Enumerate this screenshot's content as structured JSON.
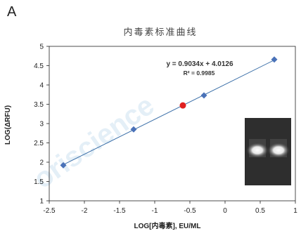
{
  "panel_label": "A",
  "watermark": "oriscience",
  "colors": {
    "line": "#3b6fa8",
    "marker": "#4a72b8",
    "sample": "#e02020",
    "axis": "#222222"
  },
  "chart_data": {
    "type": "scatter",
    "title": "内毒素标准曲线",
    "xlabel": "LOG[内毒素], EU/ML",
    "ylabel": "LOG(ΔRFU)",
    "xlim": [
      -2.5,
      1
    ],
    "ylim": [
      1,
      5
    ],
    "xticks": [
      "-2.5",
      "-2",
      "-1.5",
      "-1",
      "-0.5",
      "0",
      "0.5",
      "1"
    ],
    "yticks": [
      "1",
      "1.5",
      "2",
      "2.5",
      "3",
      "3.5",
      "4",
      "4.5",
      "5"
    ],
    "grid": false,
    "series": [
      {
        "marker": "diamond",
        "x": [
          -2.3,
          -1.3,
          -0.3,
          0.7
        ],
        "y": [
          1.92,
          2.85,
          3.73,
          4.66
        ]
      }
    ],
    "sample_point": {
      "x": -0.6,
      "y": 3.47
    },
    "trendline": {
      "slope": 0.9034,
      "intercept": 4.0126,
      "equation": "y = 0.9034x + 4.0126",
      "r2": "R² = 0.9985"
    },
    "inset": "gel-image"
  }
}
